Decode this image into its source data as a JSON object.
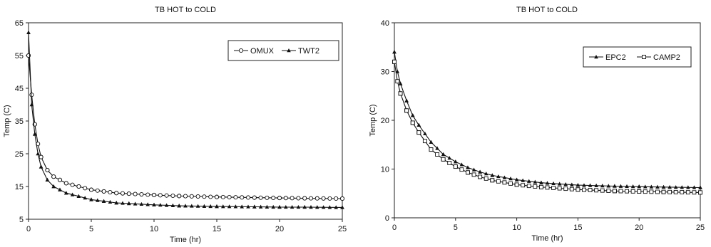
{
  "chart_data": [
    {
      "type": "line",
      "title": "TB HOT to COLD",
      "xlabel": "Time (hr)",
      "ylabel": "Temp (C)",
      "xlim": [
        0,
        25
      ],
      "ylim": [
        5,
        65
      ],
      "xticks": [
        0,
        5,
        10,
        15,
        20,
        25
      ],
      "yticks": [
        5,
        15,
        25,
        35,
        45,
        55,
        65
      ],
      "grid": false,
      "legend_position": "top-right",
      "series": [
        {
          "name": "OMUX",
          "marker": "open-circle",
          "x": [
            0,
            0.25,
            0.5,
            0.75,
            1,
            1.5,
            2,
            2.5,
            3,
            4,
            5,
            6,
            7,
            8,
            10,
            12,
            15,
            18,
            20,
            22,
            25
          ],
          "values": [
            55,
            43,
            34,
            28,
            24,
            20,
            18,
            17,
            16,
            15,
            14,
            13.5,
            13,
            12.8,
            12.4,
            12.1,
            11.8,
            11.6,
            11.5,
            11.4,
            11.3
          ]
        },
        {
          "name": "TWT2",
          "marker": "filled-triangle",
          "x": [
            0,
            0.25,
            0.5,
            0.75,
            1,
            1.5,
            2,
            2.5,
            3,
            4,
            5,
            6,
            7,
            8,
            10,
            12,
            15,
            18,
            20,
            22,
            25
          ],
          "values": [
            62,
            40,
            31,
            25,
            21,
            17,
            15,
            14,
            13,
            12,
            11,
            10.5,
            10,
            9.8,
            9.4,
            9.1,
            8.9,
            8.8,
            8.7,
            8.7,
            8.6
          ]
        }
      ]
    },
    {
      "type": "line",
      "title": "TB HOT to COLD",
      "xlabel": "Time (hr)",
      "ylabel": "Temp (C)",
      "xlim": [
        0,
        25
      ],
      "ylim": [
        0,
        40
      ],
      "xticks": [
        0,
        5,
        10,
        15,
        20,
        25
      ],
      "yticks": [
        0,
        10,
        20,
        30,
        40
      ],
      "grid": false,
      "legend_position": "top-right",
      "series": [
        {
          "name": "EPC2",
          "marker": "filled-triangle",
          "x": [
            0,
            0.25,
            0.5,
            1,
            1.5,
            2,
            3,
            4,
            5,
            6,
            7,
            8,
            10,
            12,
            15,
            18,
            20,
            22,
            25
          ],
          "values": [
            34,
            30,
            27.5,
            24,
            21,
            19,
            15.5,
            13,
            11.5,
            10.3,
            9.4,
            8.7,
            7.8,
            7.2,
            6.7,
            6.5,
            6.4,
            6.3,
            6.2
          ]
        },
        {
          "name": "CAMP2",
          "marker": "open-square",
          "x": [
            0,
            0.25,
            0.5,
            1,
            1.5,
            2,
            3,
            4,
            5,
            6,
            7,
            8,
            10,
            12,
            15,
            18,
            20,
            22,
            25
          ],
          "values": [
            32,
            28,
            25.5,
            22,
            19.5,
            17.5,
            14,
            12,
            10.5,
            9.3,
            8.4,
            7.7,
            6.8,
            6.3,
            5.8,
            5.5,
            5.4,
            5.3,
            5.2
          ]
        }
      ]
    }
  ]
}
